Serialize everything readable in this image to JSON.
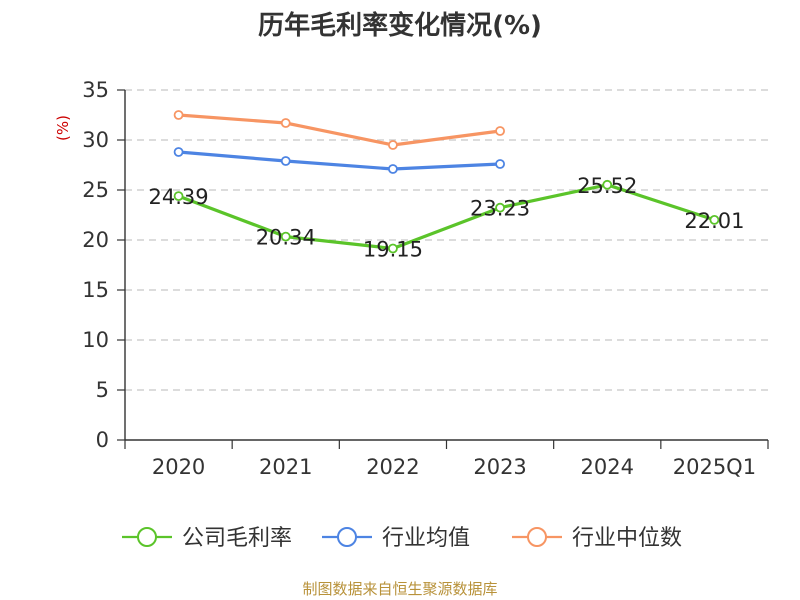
{
  "colors": {
    "company": "#5bc42a",
    "industry_avg": "#4d84e3",
    "industry_median": "#f79563",
    "grid": "#c8c8c8",
    "axis": "#333333",
    "unit": "#cc0000",
    "source": "#b8923a"
  },
  "chart_data": {
    "type": "line",
    "title": "历年毛利率变化情况(%)",
    "unit_label": "(%)",
    "categories": [
      "2020",
      "2021",
      "2022",
      "2023",
      "2024",
      "2025Q1"
    ],
    "y_ticks": [
      "0",
      "5",
      "10",
      "15",
      "20",
      "25",
      "30",
      "35"
    ],
    "ylim": [
      0,
      35
    ],
    "grid": true,
    "legend_position": "bottom",
    "series": [
      {
        "name": "公司毛利率",
        "values": [
          24.39,
          20.34,
          19.15,
          23.23,
          25.52,
          22.01
        ],
        "labels": [
          "24.39",
          "20.34",
          "19.15",
          "23.23",
          "25.52",
          "22.01"
        ]
      },
      {
        "name": "行业均值",
        "values": [
          28.8,
          27.9,
          27.1,
          27.6,
          null,
          null
        ]
      },
      {
        "name": "行业中位数",
        "values": [
          32.5,
          31.7,
          29.5,
          30.9,
          null,
          null
        ]
      }
    ]
  },
  "footer": {
    "source": "制图数据来自恒生聚源数据库"
  }
}
